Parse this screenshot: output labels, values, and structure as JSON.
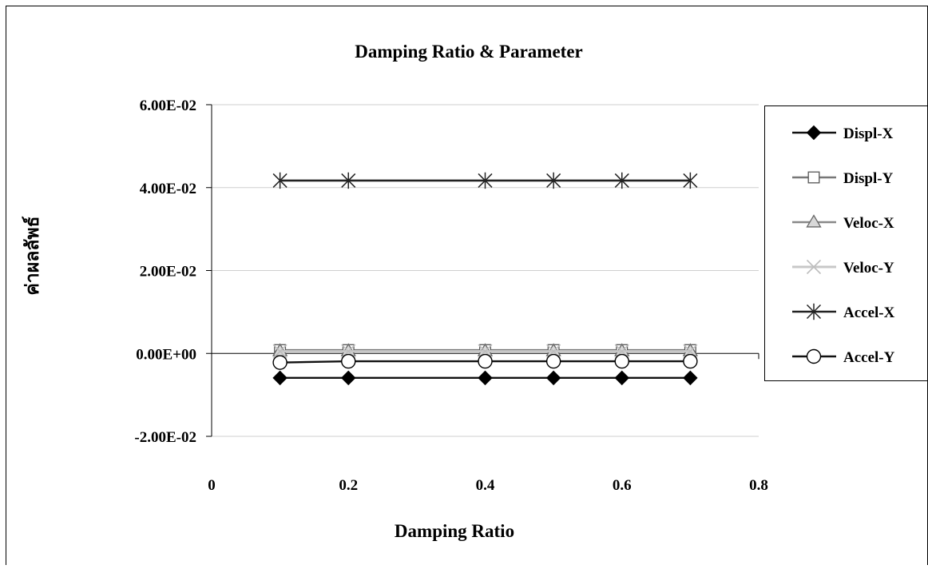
{
  "chart_data": {
    "type": "line",
    "title": "Damping Ratio & Parameter",
    "xlabel": "Damping Ratio",
    "ylabel": "ค่าผลลัพธ์",
    "xlim": [
      0,
      0.8
    ],
    "ylim": [
      -0.02,
      0.06
    ],
    "x_ticks": [
      0,
      0.2,
      0.4,
      0.6,
      0.8
    ],
    "x_tick_labels": [
      "0",
      "0.2",
      "0.4",
      "0.6",
      "0.8"
    ],
    "y_ticks": [
      0.06,
      0.04,
      0.02,
      0.0,
      -0.02
    ],
    "y_tick_labels": [
      "6.00E-02",
      "4.00E-02",
      "2.00E-02",
      "0.00E+00",
      "-2.00E-02"
    ],
    "grid": "horizontal",
    "legend_position": "right",
    "x": [
      0.1,
      0.2,
      0.4,
      0.5,
      0.6,
      0.7
    ],
    "series": [
      {
        "name": "Displ-X",
        "values": [
          -0.0059,
          -0.0059,
          -0.0059,
          -0.0059,
          -0.0059,
          -0.0059
        ],
        "color": "#111111",
        "marker": "diamond"
      },
      {
        "name": "Displ-Y",
        "values": [
          0.0008,
          0.0008,
          0.0008,
          0.0008,
          0.0008,
          0.0008
        ],
        "color": "#777777",
        "marker": "square"
      },
      {
        "name": "Veloc-X",
        "values": [
          0.0006,
          0.0006,
          0.0006,
          0.0006,
          0.0006,
          0.0006
        ],
        "color": "#888888",
        "marker": "triangle"
      },
      {
        "name": "Veloc-Y",
        "values": [
          0.0005,
          0.0005,
          0.0005,
          0.0005,
          0.0005,
          0.0005
        ],
        "color": "#c8c8c8",
        "marker": "x"
      },
      {
        "name": "Accel-X",
        "values": [
          0.0417,
          0.0417,
          0.0417,
          0.0417,
          0.0417,
          0.0417
        ],
        "color": "#222222",
        "marker": "star"
      },
      {
        "name": "Accel-Y",
        "values": [
          -0.0022,
          -0.0019,
          -0.0019,
          -0.0019,
          -0.0019,
          -0.0019
        ],
        "color": "#111111",
        "marker": "circle"
      }
    ]
  }
}
